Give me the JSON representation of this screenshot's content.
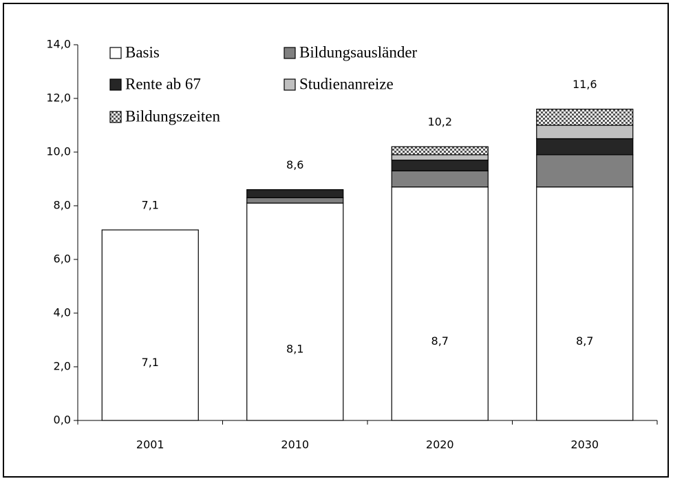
{
  "chart_data": {
    "type": "stacked_bar",
    "categories": [
      "2001",
      "2010",
      "2020",
      "2030"
    ],
    "series": [
      {
        "name": "Basis",
        "color": "#ffffff",
        "values": [
          7.1,
          8.1,
          8.7,
          8.7
        ],
        "value_labels": [
          "7,1",
          "8,1",
          "8,7",
          "8,7"
        ]
      },
      {
        "name": "Bildungsausländer",
        "color": "#808080",
        "values": [
          0,
          0.2,
          0.6,
          1.2
        ]
      },
      {
        "name": "Rente ab 67",
        "color": "#262626",
        "values": [
          0,
          0.3,
          0.4,
          0.6
        ]
      },
      {
        "name": "Studienanreize",
        "color": "#c0c0c0",
        "values": [
          0,
          0,
          0.2,
          0.5
        ]
      },
      {
        "name": "Bildungszeiten",
        "color": "#ffffff",
        "pattern": "checkered",
        "values": [
          0,
          0,
          0.3,
          0.6
        ]
      }
    ],
    "totals": [
      7.1,
      8.6,
      10.2,
      11.6
    ],
    "total_labels": [
      "7,1",
      "8,6",
      "10,2",
      "11,6"
    ],
    "ylim": [
      0,
      14
    ],
    "yticks": [
      {
        "value": 0,
        "label": "0,0"
      },
      {
        "value": 2,
        "label": "2,0"
      },
      {
        "value": 4,
        "label": "4,0"
      },
      {
        "value": 6,
        "label": "6,0"
      },
      {
        "value": 8,
        "label": "8,0"
      },
      {
        "value": 10,
        "label": "10,0"
      },
      {
        "value": 12,
        "label": "12,0"
      },
      {
        "value": 14,
        "label": "14,0"
      }
    ],
    "grid": false
  }
}
